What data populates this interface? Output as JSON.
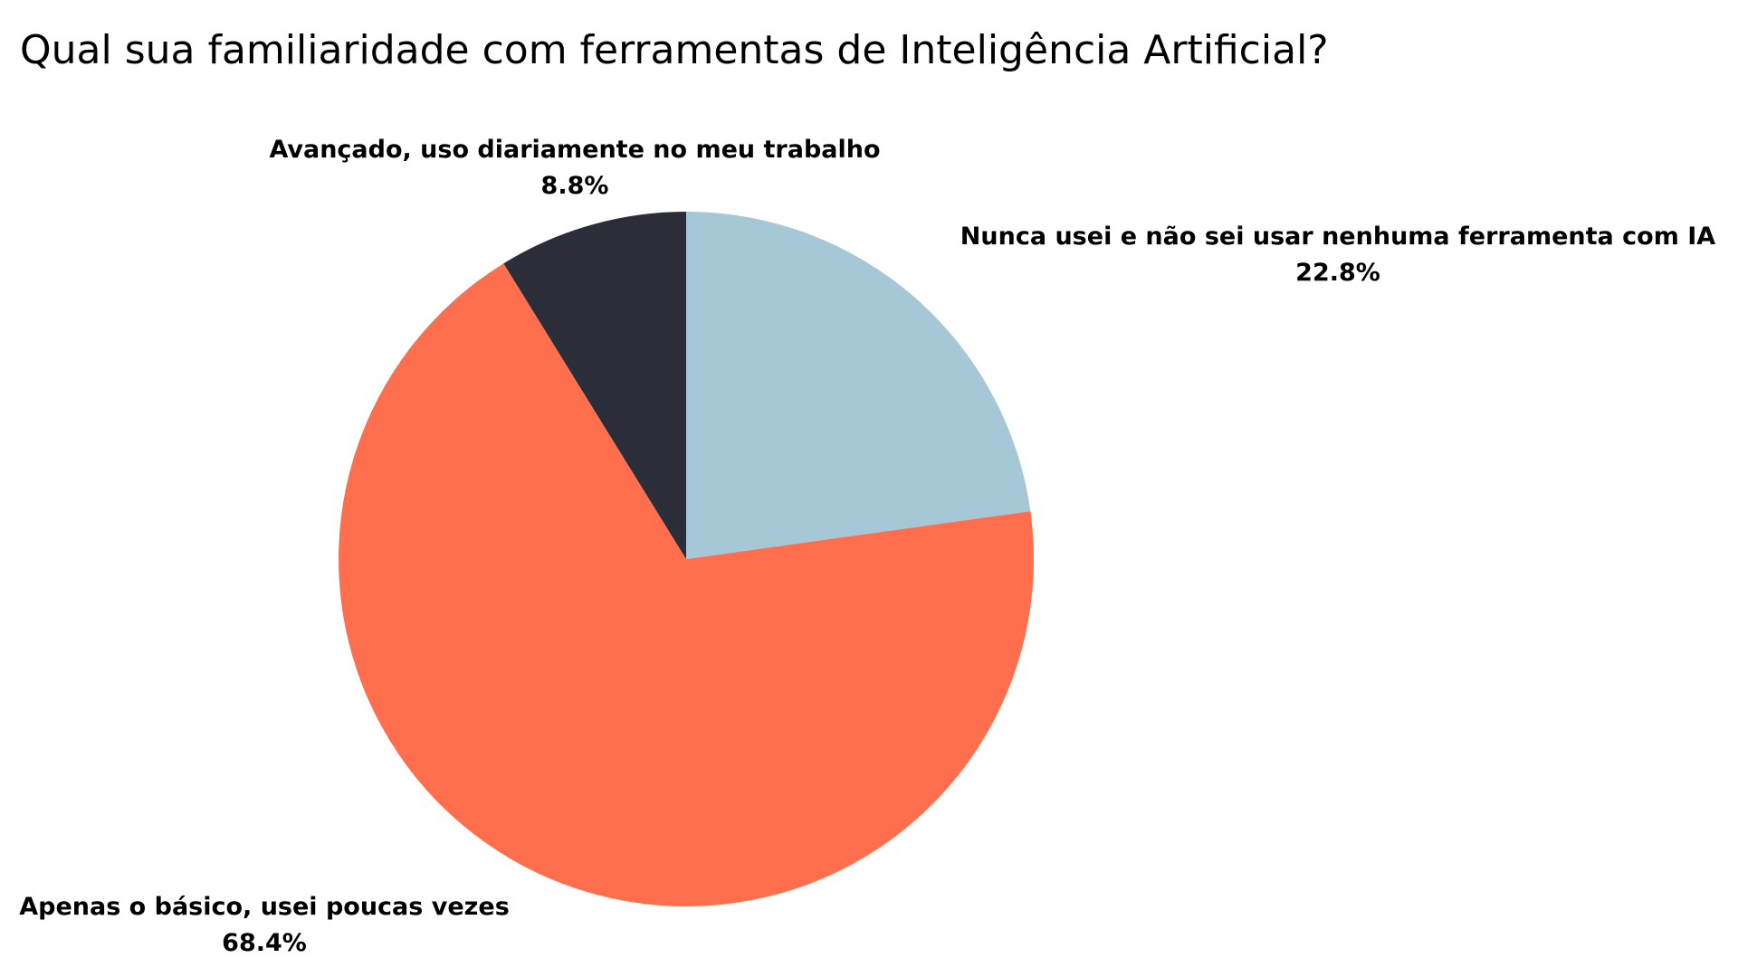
{
  "chart_data": {
    "type": "pie",
    "title": "Qual sua familiaridade com ferramentas de Inteligência Artificial?",
    "slices": [
      {
        "label": "Nunca usei e não sei usar nenhuma ferramenta com IA",
        "value": 22.8,
        "value_label": "22.8%",
        "color": "#A6C8D6"
      },
      {
        "label": "Apenas o básico, usei poucas vezes",
        "value": 68.4,
        "value_label": "68.4%",
        "color": "#FF6F4E"
      },
      {
        "label": "Avançado, uso diariamente no meu trabalho",
        "value": 8.8,
        "value_label": "8.8%",
        "color": "#2B2E39"
      }
    ],
    "start_angle": "12 o'clock",
    "direction": "clockwise",
    "legend": "none",
    "grid": false
  }
}
